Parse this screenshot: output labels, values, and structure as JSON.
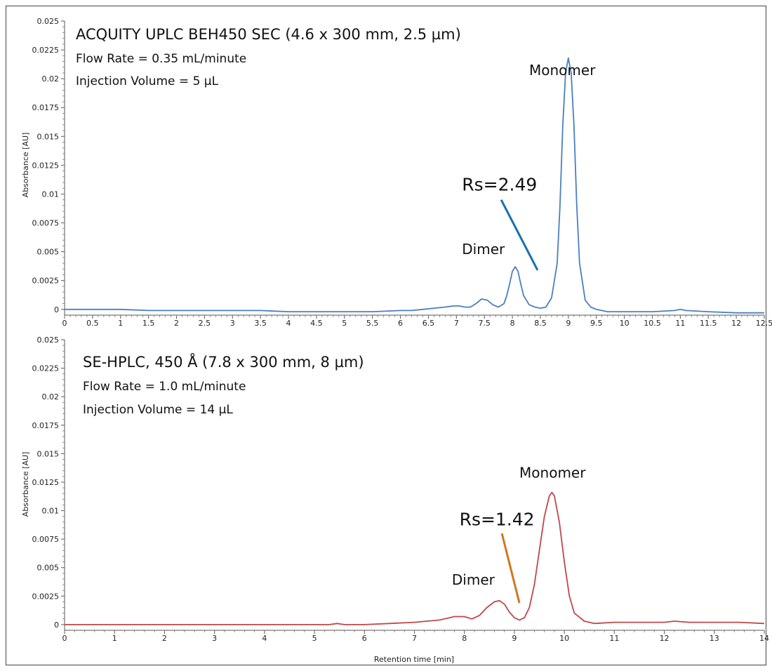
{
  "chart_data": [
    {
      "type": "line",
      "title": "ACQUITY UPLC BEH450 SEC (4.6 x 300 mm, 2.5 µm)",
      "annotations_text": [
        "Flow Rate = 0.35 mL/minute",
        "Injection Volume = 5 µL"
      ],
      "ylabel": "Absorbance [AU]",
      "xlabel": "",
      "xlim": [
        0,
        12.5
      ],
      "ylim": [
        -0.0005,
        0.025
      ],
      "xticks": [
        "0",
        "0.5",
        "1",
        "1.5",
        "2",
        "2.5",
        "3",
        "3.5",
        "4",
        "4.5",
        "5",
        "5.5",
        "6",
        "6.5",
        "7",
        "7.5",
        "8",
        "8.5",
        "9",
        "9.5",
        "10",
        "10.5",
        "11",
        "11.5",
        "12",
        "12.5"
      ],
      "xtick_values": [
        0,
        0.5,
        1,
        1.5,
        2,
        2.5,
        3,
        3.5,
        4,
        4.5,
        5,
        5.5,
        6,
        6.5,
        7,
        7.5,
        8,
        8.5,
        9,
        9.5,
        10,
        10.5,
        11,
        11.5,
        12,
        12.5
      ],
      "yticks": [
        "0",
        "0.0025",
        "0.005",
        "0.0075",
        "0.01",
        "0.0125",
        "0.015",
        "0.0175",
        "0.02",
        "0.0225",
        "0.025"
      ],
      "ytick_values": [
        0,
        0.0025,
        0.005,
        0.0075,
        0.01,
        0.0125,
        0.015,
        0.0175,
        0.02,
        0.0225,
        0.025
      ],
      "series": [
        {
          "color": "#4a7fc1",
          "x": [
            0,
            0.5,
            1,
            1.5,
            2,
            2.5,
            3,
            3.5,
            4,
            4.5,
            5,
            5.5,
            6,
            6.2,
            6.4,
            6.6,
            6.8,
            6.95,
            7.05,
            7.15,
            7.25,
            7.35,
            7.45,
            7.55,
            7.65,
            7.75,
            7.85,
            7.9,
            7.95,
            8.0,
            8.05,
            8.1,
            8.15,
            8.2,
            8.3,
            8.4,
            8.5,
            8.6,
            8.7,
            8.8,
            8.85,
            8.9,
            8.95,
            9.0,
            9.05,
            9.1,
            9.15,
            9.2,
            9.3,
            9.4,
            9.5,
            9.7,
            10.0,
            10.5,
            10.9,
            11.0,
            11.1,
            11.5,
            12.0,
            12.5
          ],
          "y": [
            0.0,
            0.0,
            0.0,
            -0.0001,
            -0.0001,
            -0.0001,
            -0.0001,
            -0.0001,
            -0.0002,
            -0.0002,
            -0.0002,
            -0.0002,
            -0.0001,
            -0.0001,
            0.0,
            0.0001,
            0.0002,
            0.0003,
            0.0003,
            0.0002,
            0.0002,
            0.0005,
            0.0009,
            0.0008,
            0.0004,
            0.0002,
            0.0005,
            0.0012,
            0.0022,
            0.0033,
            0.0037,
            0.0033,
            0.0022,
            0.0012,
            0.0004,
            0.0002,
            0.0001,
            0.0002,
            0.001,
            0.004,
            0.009,
            0.016,
            0.0205,
            0.0218,
            0.0205,
            0.016,
            0.009,
            0.004,
            0.0008,
            0.0002,
            0.0,
            -0.0002,
            -0.0002,
            -0.0002,
            -0.0001,
            0.0,
            -0.0001,
            -0.0002,
            -0.0003,
            -0.0003
          ]
        }
      ],
      "labels": [
        {
          "text": "Monomer",
          "x": 8.3,
          "y": 0.0203
        },
        {
          "text": "Rs=2.49",
          "x": 7.1,
          "y": 0.0103
        },
        {
          "text": "Dimer",
          "x": 7.1,
          "y": 0.0048
        }
      ],
      "pointer": {
        "x1": 7.8,
        "y1": 0.0095,
        "x2": 8.45,
        "y2": 0.0034,
        "color": "#1a6faf"
      }
    },
    {
      "type": "line",
      "title": "SE-HPLC, 450 Å (7.8 x 300 mm, 8 µm)",
      "annotations_text": [
        "Flow Rate = 1.0 mL/minute",
        "Injection Volume = 14 µL"
      ],
      "ylabel": "Absorbance [AU]",
      "xlabel": "Retention time [min]",
      "xlim": [
        0,
        14
      ],
      "ylim": [
        -0.0005,
        0.025
      ],
      "xticks": [
        "0",
        "1",
        "2",
        "3",
        "4",
        "5",
        "6",
        "7",
        "8",
        "9",
        "10",
        "11",
        "12",
        "13",
        "14"
      ],
      "xtick_values": [
        0,
        1,
        2,
        3,
        4,
        5,
        6,
        7,
        8,
        9,
        10,
        11,
        12,
        13,
        14
      ],
      "yticks": [
        "0",
        "0.0025",
        "0.005",
        "0.0075",
        "0.01",
        "0.0125",
        "0.015",
        "0.0175",
        "0.02",
        "0.0225",
        "0.025"
      ],
      "ytick_values": [
        0,
        0.0025,
        0.005,
        0.0075,
        0.01,
        0.0125,
        0.015,
        0.0175,
        0.02,
        0.0225,
        0.025
      ],
      "series": [
        {
          "color": "#c0474a",
          "x": [
            0,
            1,
            2,
            3,
            4,
            5,
            5.3,
            5.45,
            5.6,
            6,
            6.5,
            7,
            7.5,
            7.8,
            8.0,
            8.15,
            8.3,
            8.45,
            8.6,
            8.7,
            8.8,
            8.9,
            9.0,
            9.1,
            9.2,
            9.3,
            9.4,
            9.5,
            9.6,
            9.7,
            9.75,
            9.8,
            9.9,
            10.0,
            10.1,
            10.2,
            10.4,
            10.6,
            11,
            11.5,
            12,
            12.2,
            12.5,
            13,
            13.5,
            14
          ],
          "y": [
            0.0,
            0.0,
            0.0,
            0.0,
            0.0,
            0.0,
            0.0,
            0.0001,
            0.0,
            0.0,
            0.0001,
            0.0002,
            0.0004,
            0.0007,
            0.0007,
            0.0005,
            0.0008,
            0.0015,
            0.002,
            0.0021,
            0.0018,
            0.0011,
            0.0006,
            0.0004,
            0.0006,
            0.0015,
            0.0035,
            0.0065,
            0.0095,
            0.0113,
            0.0116,
            0.0113,
            0.009,
            0.0055,
            0.0025,
            0.001,
            0.0003,
            0.0001,
            0.0002,
            0.0002,
            0.0002,
            0.0003,
            0.0002,
            0.0002,
            0.0002,
            0.0001
          ]
        }
      ],
      "labels": [
        {
          "text": "Monomer",
          "x": 9.1,
          "y": 0.0129
        },
        {
          "text": "Rs=1.42",
          "x": 7.9,
          "y": 0.0087
        },
        {
          "text": "Dimer",
          "x": 7.75,
          "y": 0.0035
        }
      ],
      "pointer": {
        "x1": 8.75,
        "y1": 0.008,
        "x2": 9.1,
        "y2": 0.0019,
        "color": "#d2771f"
      }
    }
  ]
}
